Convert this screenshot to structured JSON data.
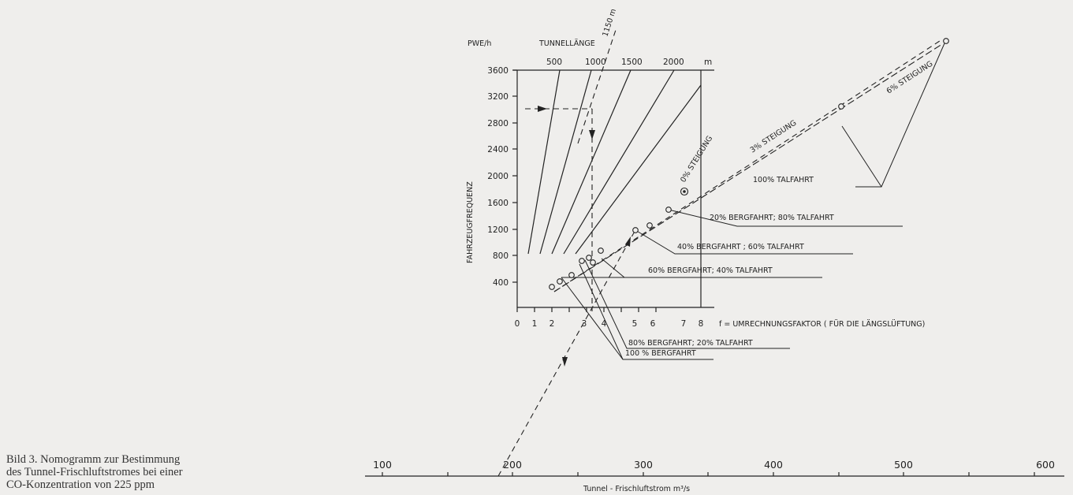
{
  "caption": {
    "line1": "Bild 3.  Nomogramm zur Bestimmung",
    "line2": "des Tunnel-Frischluftstromes bei einer",
    "line3": "CO-Konzentration von 225 ppm"
  },
  "top_labels": {
    "pwe": "PWE/h",
    "tunnellaenge": "TUNNELLÄNGE",
    "length_ticks": [
      "500",
      "1000",
      "1500",
      "2000"
    ],
    "length_unit": "m",
    "dashed_length": "1150 m"
  },
  "left_axis": {
    "title": "FAHRZEUGFREQUENZ",
    "ticks": [
      "3600",
      "3200",
      "2800",
      "2400",
      "2000",
      "1600",
      "1200",
      "800",
      "400"
    ]
  },
  "f_axis": {
    "ticks": [
      "0",
      "1",
      "2",
      "3",
      "4",
      "5",
      "6",
      "7",
      "8"
    ],
    "label": "f = UMRECHNUNGSFAKTOR  ( FÜR DIE LÄNGSLÜFTUNG)"
  },
  "bottom_axis": {
    "ticks": [
      "100",
      "200",
      "300",
      "400",
      "500",
      "600"
    ],
    "label": "Tunnel -  Frischluftstrom   m³/s"
  },
  "grades": {
    "g0": "0% STEIGUNG",
    "g3": "3% STEIGUNG",
    "g6": "6% STEIGUNG"
  },
  "splits": {
    "t100": "100% TALFAHRT",
    "b20": "20% BERGFAHRT;  80% TALFAHRT",
    "b40": "40% BERGFAHRT ; 60% TALFAHRT",
    "b60": "60%  BERGFAHRT;  40% TALFAHRT",
    "b80": "80% BERGFAHRT;  20% TALFAHRT",
    "b100": "100 % BERGFAHRT"
  }
}
